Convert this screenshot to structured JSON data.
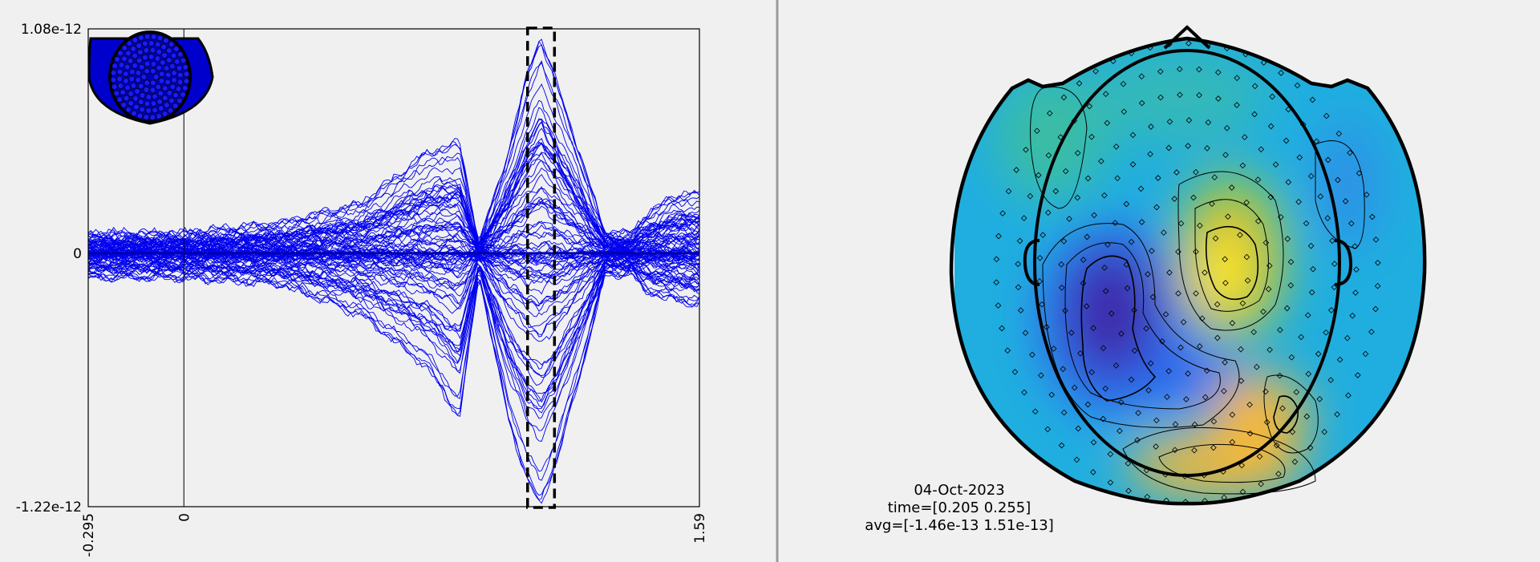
{
  "chart_data": [
    {
      "type": "line",
      "description_of_series": "many overlaid blue channel traces (butterfly plot)",
      "xlim": [
        -0.295,
        1.59
      ],
      "ylim": [
        -1.22e-12,
        1.08e-12
      ],
      "x_ticks": [
        {
          "value": -0.295,
          "label": "-0.295"
        },
        {
          "value": 0,
          "label": "0"
        },
        {
          "value": 1.59,
          "label": "1.59"
        }
      ],
      "y_ticks": [
        {
          "value": 1.08e-12,
          "label": "1.08e-12"
        },
        {
          "value": 0,
          "label": "0"
        },
        {
          "value": -1.22e-12,
          "label": "-1.22e-12"
        }
      ],
      "highlight_window": [
        0.205,
        0.255
      ],
      "reference_line_x": 0,
      "series_color": "#0000ee",
      "n_series": 90,
      "envelope": {
        "x": [
          -0.295,
          0.0,
          0.3,
          0.55,
          0.75,
          0.85,
          0.91,
          1.0,
          1.06,
          1.1,
          1.15,
          1.22,
          1.3,
          1.38,
          1.42,
          1.5,
          1.59
        ],
        "upper": [
          1e-13,
          1e-13,
          1.5e-13,
          2.5e-13,
          5e-13,
          5.5e-13,
          5e-14,
          5e-13,
          9e-13,
          1.08e-12,
          8.5e-13,
          5e-13,
          1e-13,
          1e-13,
          1.8e-13,
          2.8e-13,
          3e-13
        ],
        "lower": [
          -1.2e-13,
          -1.2e-13,
          -1.5e-13,
          -3e-13,
          -5.5e-13,
          -8e-13,
          -1e-13,
          -8e-13,
          -1.1e-12,
          -1.22e-12,
          -1e-12,
          -6e-13,
          -1e-13,
          -1e-13,
          -1.8e-13,
          -2.2e-13,
          -2.5e-13
        ]
      }
    },
    {
      "type": "heatmap",
      "kind": "scalp topography",
      "colormap": [
        "#3e26a8",
        "#2e6af0",
        "#12b2e2",
        "#3fbf9f",
        "#9cc83f",
        "#f6b838",
        "#f9fb15"
      ],
      "labels": [
        "04-Oct-2023",
        "time=[0.205 0.255]",
        "avg=[-1.46e-13 1.51e-13]"
      ]
    }
  ],
  "colors": {
    "background": "#f0f0f0",
    "trace": "#0000ee",
    "divider": "#9a9a9a"
  }
}
